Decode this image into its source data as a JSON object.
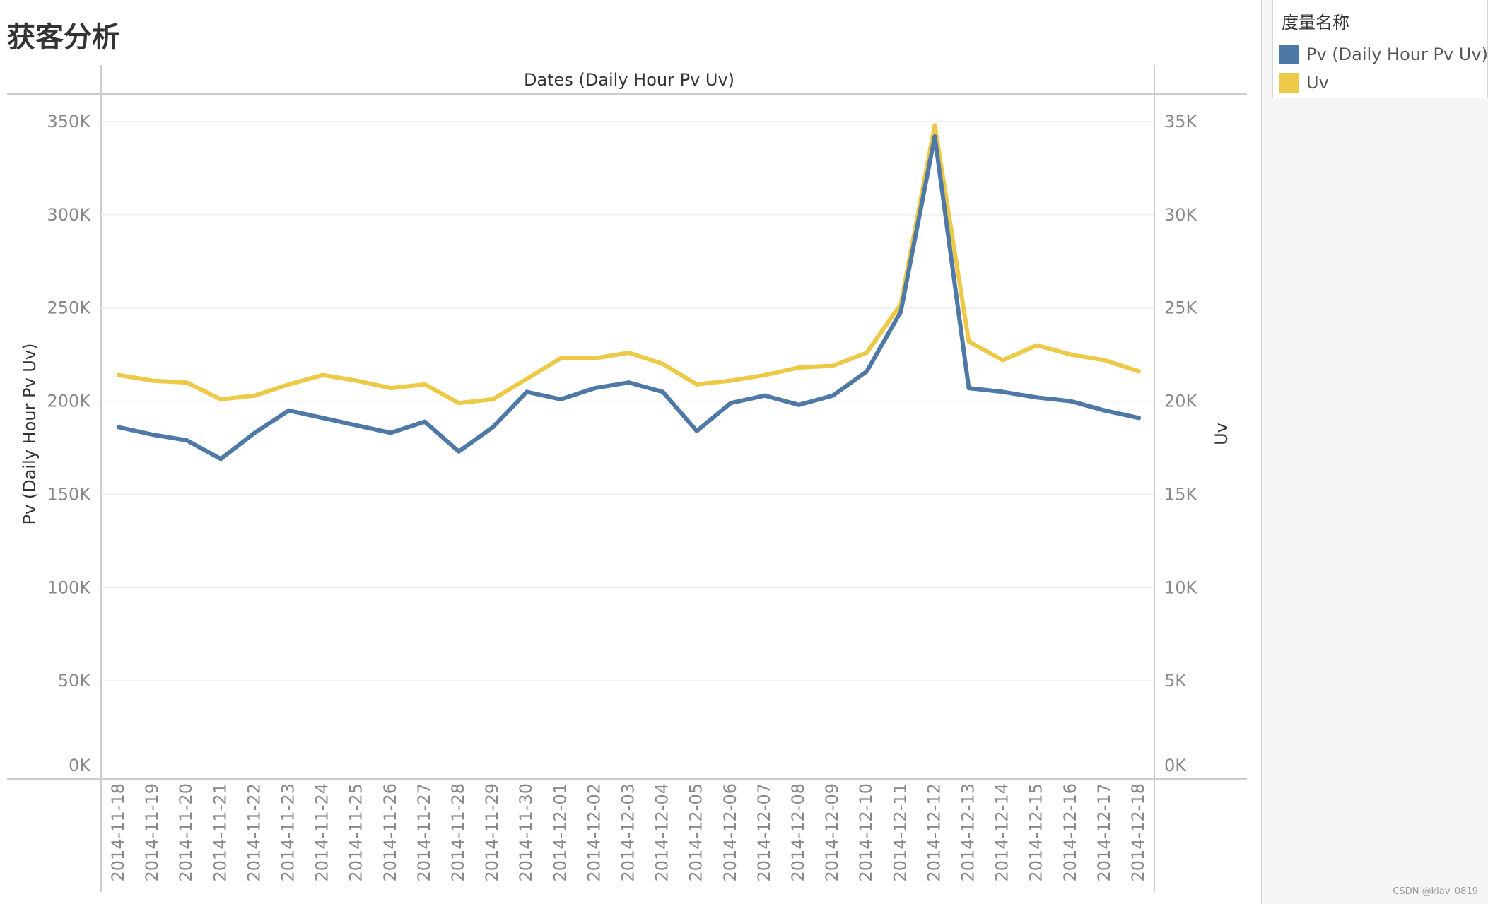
{
  "title": "获客分析",
  "colors": {
    "pv": "#4E79A7",
    "uv": "#EDC948",
    "grid": "#eeeeee",
    "axis_text": "#888888",
    "label_text": "#333333"
  },
  "legend": {
    "title": "度量名称",
    "items": [
      {
        "label": "Pv (Daily Hour Pv Uv)",
        "color": "#4E79A7"
      },
      {
        "label": "Uv",
        "color": "#EDC948"
      }
    ]
  },
  "watermark": "CSDN @klav_0819",
  "chart_data": {
    "type": "line",
    "title": "Dates (Daily Hour Pv Uv)",
    "ylabel": "Pv (Daily Hour Pv Uv)",
    "y2label": "Uv",
    "ylim": [
      0,
      350000
    ],
    "y2lim": [
      0,
      35000
    ],
    "yticks": [
      "0K",
      "50K",
      "100K",
      "150K",
      "200K",
      "250K",
      "300K",
      "350K"
    ],
    "y2ticks": [
      "0K",
      "5K",
      "10K",
      "15K",
      "20K",
      "25K",
      "30K",
      "35K"
    ],
    "grid": true,
    "legend": "right",
    "categories": [
      "2014-11-18",
      "2014-11-19",
      "2014-11-20",
      "2014-11-21",
      "2014-11-22",
      "2014-11-23",
      "2014-11-24",
      "2014-11-25",
      "2014-11-26",
      "2014-11-27",
      "2014-11-28",
      "2014-11-29",
      "2014-11-30",
      "2014-12-01",
      "2014-12-02",
      "2014-12-03",
      "2014-12-04",
      "2014-12-05",
      "2014-12-06",
      "2014-12-07",
      "2014-12-08",
      "2014-12-09",
      "2014-12-10",
      "2014-12-11",
      "2014-12-12",
      "2014-12-13",
      "2014-12-14",
      "2014-12-15",
      "2014-12-16",
      "2014-12-17",
      "2014-12-18"
    ],
    "series": [
      {
        "name": "Pv (Daily Hour Pv Uv)",
        "axis": "left",
        "values": [
          186000,
          182000,
          179000,
          169000,
          183000,
          195000,
          191000,
          187000,
          183000,
          189000,
          173000,
          186000,
          205000,
          201000,
          207000,
          210000,
          205000,
          184000,
          199000,
          203000,
          198000,
          203000,
          216000,
          248000,
          342000,
          207000,
          205000,
          202000,
          200000,
          195000,
          191000
        ]
      },
      {
        "name": "Uv",
        "axis": "right",
        "values": [
          21400,
          21100,
          21000,
          20100,
          20300,
          20900,
          21400,
          21100,
          20700,
          20900,
          19900,
          20100,
          21200,
          22300,
          22300,
          22600,
          22000,
          20900,
          21100,
          21400,
          21800,
          21900,
          22600,
          25200,
          34800,
          23200,
          22200,
          23000,
          22500,
          22200,
          21600
        ]
      }
    ]
  }
}
